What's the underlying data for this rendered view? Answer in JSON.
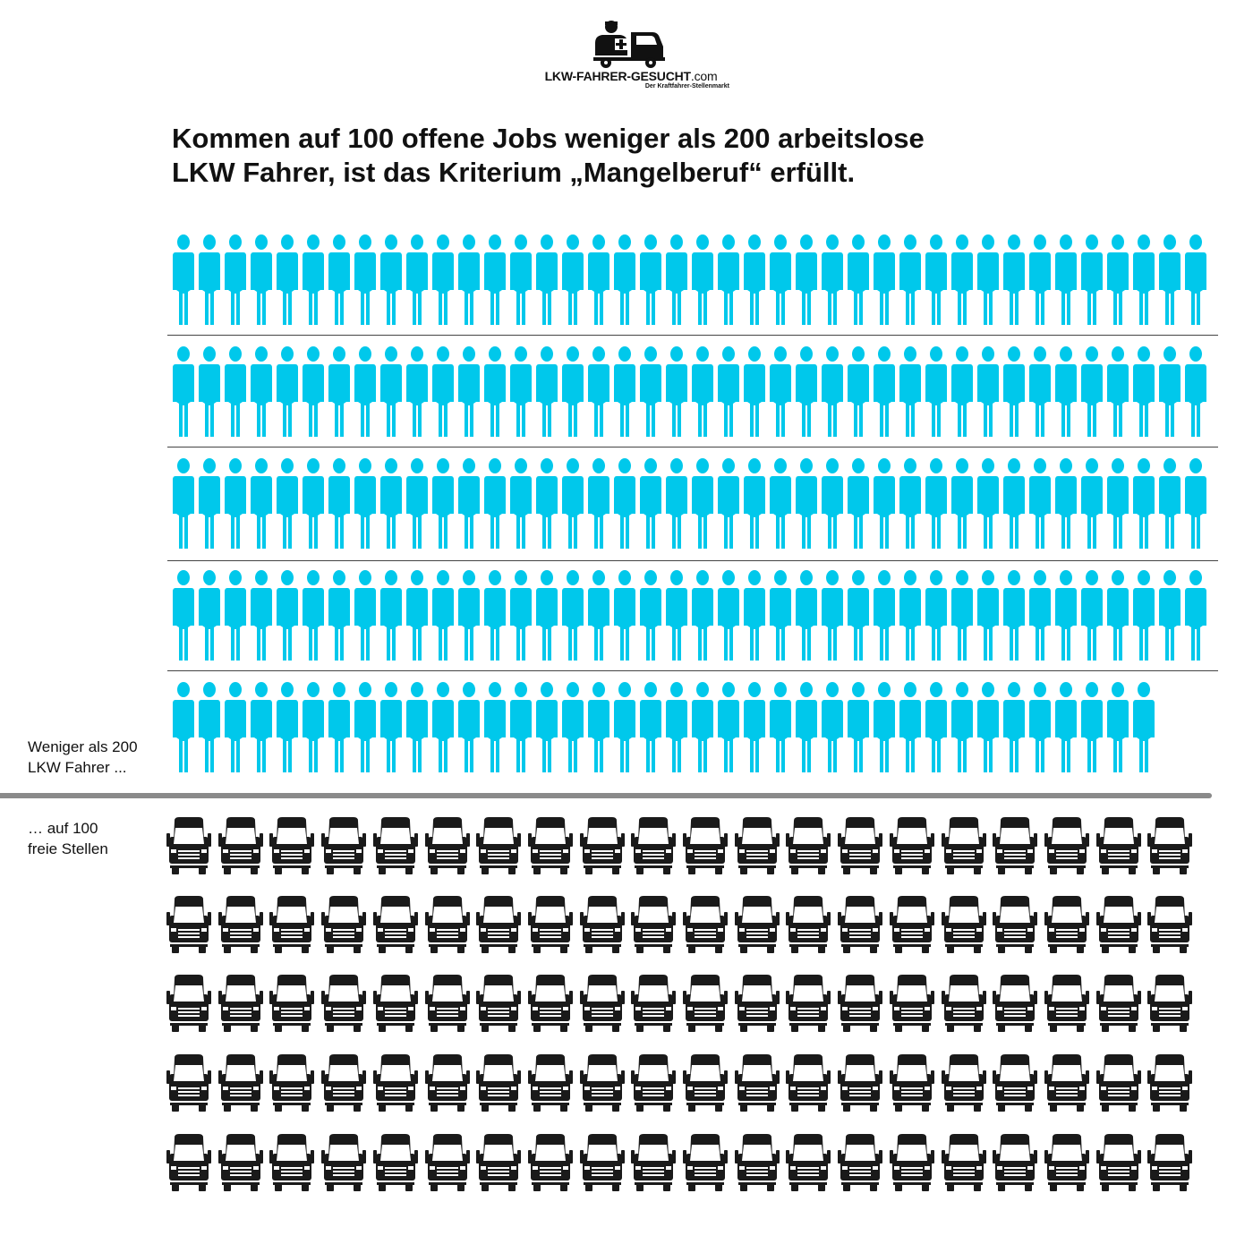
{
  "logo": {
    "name": "LKW-FAHRER-GESUCHT",
    "suffix": ".com",
    "tagline": "Der Kraftfahrer-Stellenmarkt"
  },
  "headline": {
    "line1": "Kommen auf 100 offene Jobs weniger als 200 arbeitslose",
    "line2": "LKW Fahrer, ist das Kriterium „Mangelberuf“ erfüllt."
  },
  "drivers": {
    "label_line1": "Weniger als 200",
    "label_line2": "LKW Fahrer ...",
    "rows": [
      40,
      40,
      40,
      40,
      38
    ],
    "icon": "person-icon",
    "color": "#00c8eb"
  },
  "jobs": {
    "label_line1": "… auf 100",
    "label_line2": "freie Stellen",
    "rows": [
      20,
      20,
      20,
      20,
      20
    ],
    "icon": "truck-icon",
    "color": "#1a1a1a"
  }
}
